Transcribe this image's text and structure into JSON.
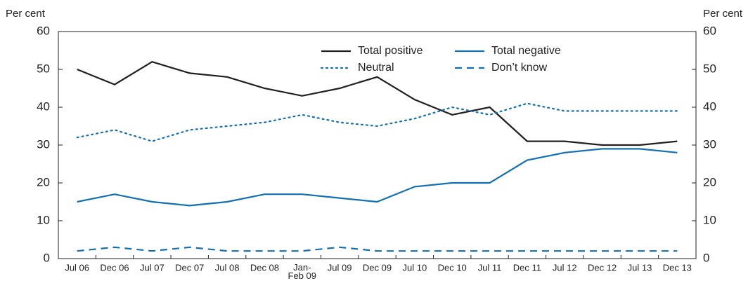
{
  "chart_data": {
    "type": "line",
    "ylabel": "Per cent",
    "y2label": "Per cent",
    "categories": [
      "Jul 06",
      "Dec 06",
      "Jul 07",
      "Dec 07",
      "Jul 08",
      "Dec 08",
      "Jan-\nFeb 09",
      "Jul 09",
      "Dec 09",
      "Jul 10",
      "Dec 10",
      "Jul 11",
      "Dec 11",
      "Jul 12",
      "Dec 12",
      "Jul 13",
      "Dec 13"
    ],
    "series": [
      {
        "name": "Total positive",
        "color": "#231f20",
        "style": "solid",
        "values": [
          50,
          46,
          52,
          49,
          48,
          45,
          43,
          45,
          48,
          42,
          38,
          40,
          31,
          31,
          30,
          30,
          31
        ]
      },
      {
        "name": "Total negative",
        "color": "#1170b5",
        "style": "solid",
        "values": [
          15,
          17,
          15,
          14,
          15,
          17,
          17,
          16,
          15,
          19,
          20,
          20,
          26,
          28,
          29,
          29,
          28
        ]
      },
      {
        "name": "Neutral",
        "color": "#1170b5",
        "style": "dotted",
        "values": [
          32,
          34,
          31,
          34,
          35,
          36,
          38,
          36,
          35,
          37,
          40,
          38,
          41,
          39,
          39,
          39,
          39
        ]
      },
      {
        "name": "Don’t know",
        "color": "#1170b5",
        "style": "dashed",
        "values": [
          2,
          3,
          2,
          3,
          2,
          2,
          2,
          3,
          2,
          2,
          2,
          2,
          2,
          2,
          2,
          2,
          2
        ]
      }
    ],
    "ylim": [
      0,
      60
    ],
    "yticks": [
      0,
      10,
      20,
      30,
      40,
      50,
      60
    ],
    "y2lim": [
      0,
      60
    ],
    "y2ticks": [
      0,
      10,
      20,
      30,
      40,
      50,
      60
    ],
    "legend": "top"
  }
}
